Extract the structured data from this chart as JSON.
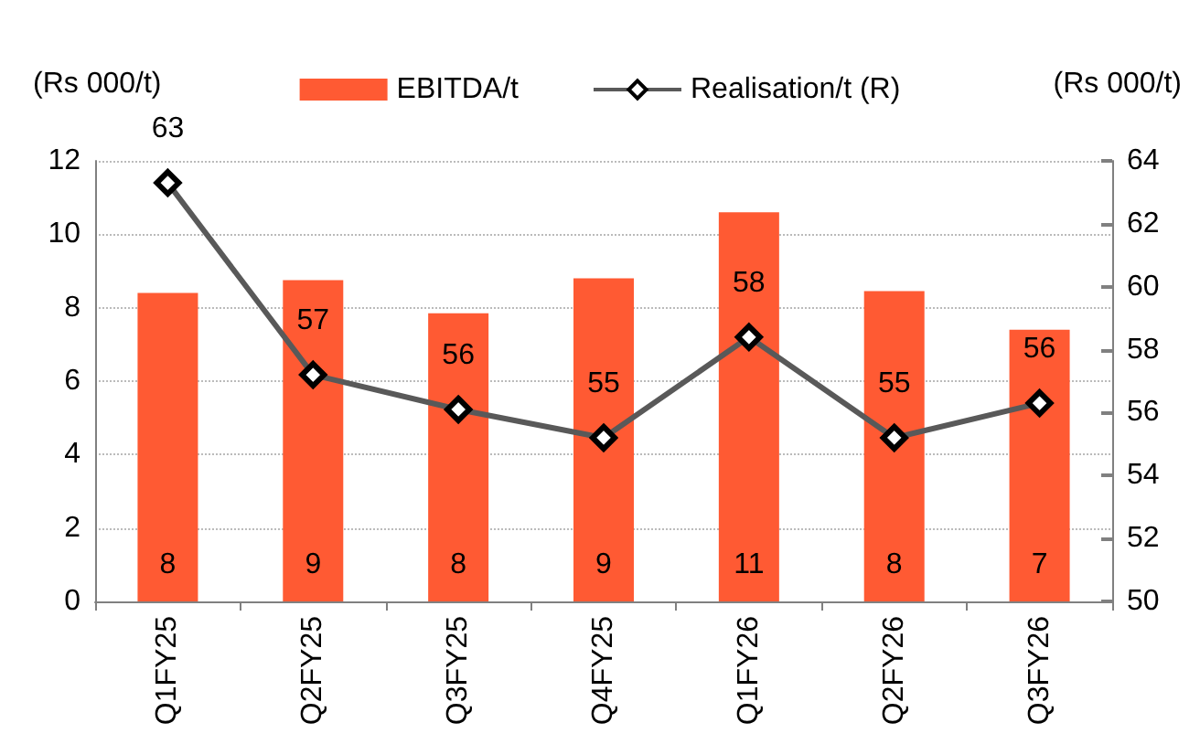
{
  "chart_data": {
    "type": "bar",
    "categories": [
      "Q1FY25",
      "Q2FY25",
      "Q3FY25",
      "Q4FY25",
      "Q1FY26",
      "Q2FY26",
      "Q3FY26"
    ],
    "series": [
      {
        "name": "EBITDA/t",
        "type": "bar",
        "color": "#ff5a33",
        "values": [
          8.4,
          8.75,
          7.85,
          8.8,
          10.6,
          8.45,
          7.4
        ],
        "value_labels": [
          "8",
          "9",
          "8",
          "9",
          "11",
          "8",
          "7"
        ]
      },
      {
        "name": "Realisation/t (R)",
        "type": "line",
        "axis": "y2",
        "color": "#595959",
        "marker": "diamond",
        "values": [
          63.3,
          57.2,
          56.1,
          55.2,
          58.4,
          55.2,
          56.3
        ],
        "value_labels": [
          "63",
          "57",
          "56",
          "55",
          "58",
          "55",
          "56"
        ]
      }
    ],
    "ylabel": "(Rs 000/t)",
    "y2label": "(Rs 000/t)",
    "ylim": [
      0,
      12
    ],
    "yticks": [
      0,
      2,
      4,
      6,
      8,
      10,
      12
    ],
    "y2lim": [
      50,
      64
    ],
    "y2ticks": [
      50,
      52,
      54,
      56,
      58,
      60,
      62,
      64
    ],
    "grid": "y",
    "legend": "top"
  }
}
